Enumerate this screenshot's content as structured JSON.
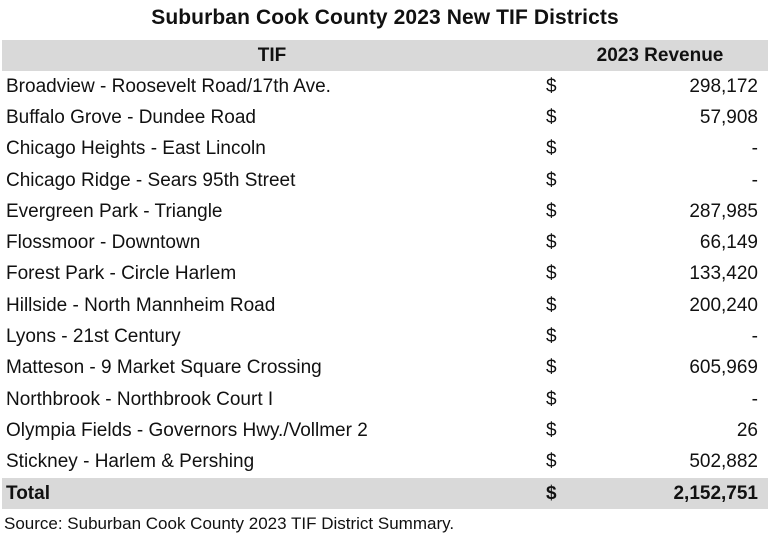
{
  "title": "Suburban Cook County 2023 New TIF Districts",
  "header": {
    "tif": "TIF",
    "revenue": "2023 Revenue"
  },
  "rows": [
    {
      "name": "Broadview - Roosevelt Road/17th Ave.",
      "cur": "$",
      "value": "298,172"
    },
    {
      "name": "Buffalo Grove - Dundee Road",
      "cur": "$",
      "value": "57,908"
    },
    {
      "name": "Chicago Heights - East Lincoln",
      "cur": "$",
      "value": "-"
    },
    {
      "name": "Chicago Ridge - Sears 95th Street",
      "cur": "$",
      "value": "-"
    },
    {
      "name": "Evergreen Park - Triangle",
      "cur": "$",
      "value": "287,985"
    },
    {
      "name": "Flossmoor - Downtown",
      "cur": "$",
      "value": "66,149"
    },
    {
      "name": "Forest Park - Circle Harlem",
      "cur": "$",
      "value": "133,420"
    },
    {
      "name": "Hillside - North Mannheim Road",
      "cur": "$",
      "value": "200,240"
    },
    {
      "name": "Lyons - 21st Century",
      "cur": "$",
      "value": "-"
    },
    {
      "name": "Matteson - 9 Market Square Crossing",
      "cur": "$",
      "value": "605,969"
    },
    {
      "name": "Northbrook - Northbrook Court I",
      "cur": "$",
      "value": "-"
    },
    {
      "name": "Olympia Fields - Governors Hwy./Vollmer 2",
      "cur": "$",
      "value": "26"
    },
    {
      "name": "Stickney - Harlem & Pershing",
      "cur": "$",
      "value": "502,882"
    }
  ],
  "total": {
    "label": "Total",
    "cur": "$",
    "value": "2,152,751"
  },
  "source": "Source: Suburban Cook County 2023 TIF District Summary."
}
